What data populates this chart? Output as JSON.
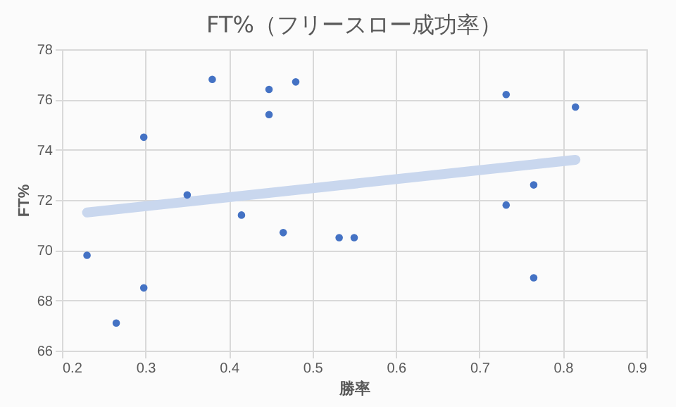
{
  "chart_data": {
    "type": "scatter",
    "title": "FT%（フリースロー成功率）",
    "xlabel": "勝率",
    "ylabel": "FT%",
    "xlim": [
      0.2,
      0.9
    ],
    "xticks": [
      0.2,
      0.3,
      0.4,
      0.5,
      0.6,
      0.7,
      0.8,
      0.9
    ],
    "ylim": [
      66,
      78
    ],
    "yticks": [
      66,
      68,
      70,
      72,
      74,
      76,
      78
    ],
    "grid": true,
    "series": [
      {
        "type": "scatter",
        "marker": "circle",
        "color": "#4472c4",
        "x": [
          0.23,
          0.265,
          0.298,
          0.298,
          0.35,
          0.38,
          0.415,
          0.448,
          0.448,
          0.465,
          0.48,
          0.532,
          0.55,
          0.732,
          0.732,
          0.765,
          0.765,
          0.815
        ],
        "values": [
          69.8,
          67.1,
          74.5,
          68.5,
          72.2,
          76.8,
          71.4,
          76.4,
          75.4,
          70.7,
          76.7,
          70.5,
          70.5,
          76.2,
          71.8,
          72.6,
          68.9,
          75.7
        ]
      },
      {
        "type": "line",
        "color": "#c9d7ee",
        "x": [
          0.23,
          0.815
        ],
        "values": [
          71.5,
          73.6
        ]
      }
    ]
  }
}
